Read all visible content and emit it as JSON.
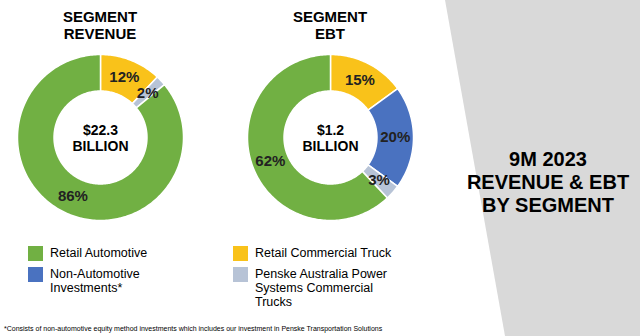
{
  "chart_data": [
    {
      "type": "pie",
      "title": "SEGMENT REVENUE",
      "annotation": "$22.3 BILLION",
      "categories": [
        "Retail Commercial Truck",
        "Penske Australia Power Systems Commercial Trucks",
        "Retail Automotive"
      ],
      "values": [
        12,
        2,
        86
      ],
      "value_labels": [
        "12%",
        "2%",
        "86%"
      ],
      "colors": [
        "#f9c21a",
        "#b7c3d6",
        "#71b043"
      ],
      "data_labels": true,
      "legend": "bottom"
    },
    {
      "type": "pie",
      "title": "SEGMENT EBT",
      "annotation": "$1.2 BILLION",
      "categories": [
        "Retail Commercial Truck",
        "Non-Automotive Investments*",
        "Penske Australia Power Systems Commercial Trucks",
        "Retail Automotive"
      ],
      "values": [
        15,
        20,
        3,
        62
      ],
      "value_labels": [
        "15%",
        "20%",
        "3%",
        "62%"
      ],
      "colors": [
        "#f9c21a",
        "#4a72c0",
        "#b7c3d6",
        "#71b043"
      ],
      "data_labels": true,
      "legend": "bottom"
    }
  ],
  "legend_entries": [
    {
      "name": "Retail Automotive",
      "color": "#71b043"
    },
    {
      "name": "Retail Commercial Truck",
      "color": "#f9c21a"
    },
    {
      "name": "Non-Automotive Investments*",
      "color": "#4a72c0"
    },
    {
      "name": "Penske Australia Power Systems Commercial Trucks",
      "color": "#b7c3d6"
    }
  ],
  "panel_title": [
    "9M 2023",
    "REVENUE & EBT",
    "BY SEGMENT"
  ],
  "footnote": "*Consists of non-automotive equity method investments which includes our investment in Penske Transportation Solutions"
}
